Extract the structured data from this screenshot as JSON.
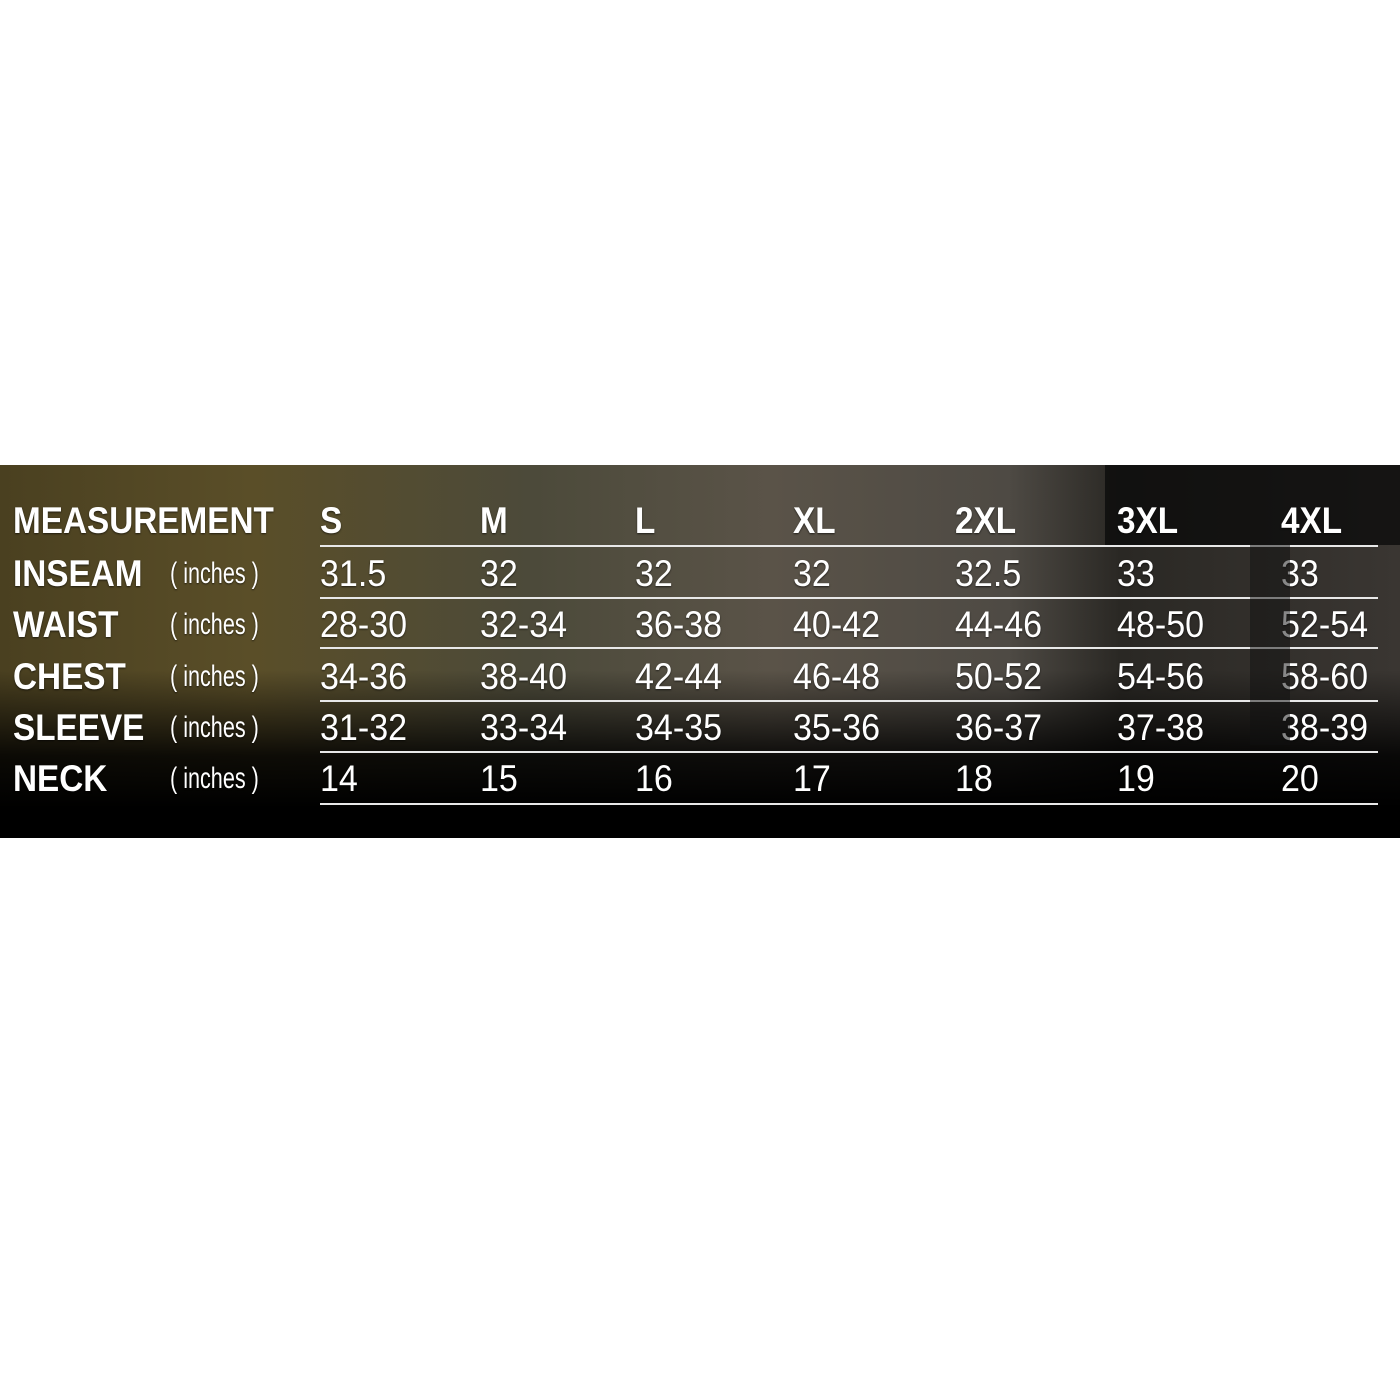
{
  "table": {
    "corner_label": "MEASUREMENT",
    "sizes": [
      "S",
      "M",
      "L",
      "XL",
      "2XL",
      "3XL",
      "4XL"
    ],
    "rows": [
      {
        "label": "INSEAM",
        "unit": "( inches )",
        "values": [
          "31.5",
          "32",
          "32",
          "32",
          "32.5",
          "33",
          "33"
        ]
      },
      {
        "label": "WAIST",
        "unit": "( inches )",
        "values": [
          "28-30",
          "32-34",
          "36-38",
          "40-42",
          "44-46",
          "48-50",
          "52-54"
        ]
      },
      {
        "label": "CHEST",
        "unit": "( inches )",
        "values": [
          "34-36",
          "38-40",
          "42-44",
          "46-48",
          "50-52",
          "54-56",
          "58-60"
        ]
      },
      {
        "label": "SLEEVE",
        "unit": "( inches )",
        "values": [
          "31-32",
          "33-34",
          "34-35",
          "35-36",
          "36-37",
          "37-38",
          "38-39"
        ]
      },
      {
        "label": "NECK",
        "unit": "( inches )",
        "values": [
          "14",
          "15",
          "16",
          "17",
          "18",
          "19",
          "20"
        ]
      }
    ]
  },
  "colors": {
    "text": "#ffffff",
    "rule": "#e8e8e8",
    "background_bottom": "#000000"
  }
}
